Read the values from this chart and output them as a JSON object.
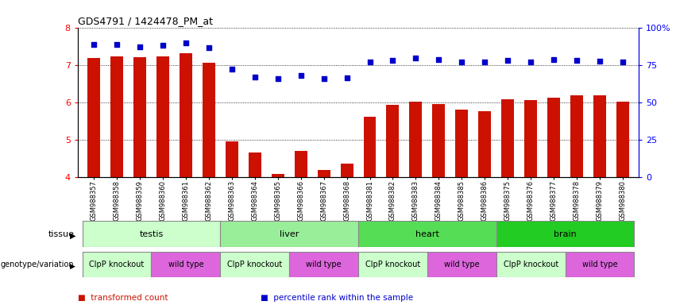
{
  "title": "GDS4791 / 1424478_PM_at",
  "samples": [
    "GSM988357",
    "GSM988358",
    "GSM988359",
    "GSM988360",
    "GSM988361",
    "GSM988362",
    "GSM988363",
    "GSM988364",
    "GSM988365",
    "GSM988366",
    "GSM988367",
    "GSM988368",
    "GSM988381",
    "GSM988382",
    "GSM988383",
    "GSM988384",
    "GSM988385",
    "GSM988386",
    "GSM988375",
    "GSM988376",
    "GSM988377",
    "GSM988378",
    "GSM988379",
    "GSM988380"
  ],
  "bar_values": [
    7.18,
    7.22,
    7.2,
    7.22,
    7.3,
    7.05,
    4.95,
    4.65,
    4.08,
    4.7,
    4.18,
    4.35,
    5.6,
    5.92,
    6.02,
    5.95,
    5.8,
    5.75,
    6.08,
    6.05,
    6.12,
    6.18,
    6.18,
    6.02
  ],
  "dot_values": [
    7.55,
    7.55,
    7.48,
    7.52,
    7.58,
    7.45,
    6.88,
    6.68,
    6.62,
    6.72,
    6.62,
    6.65,
    7.08,
    7.12,
    7.18,
    7.15,
    7.08,
    7.08,
    7.12,
    7.08,
    7.15,
    7.12,
    7.1,
    7.08
  ],
  "ylim": [
    4,
    8
  ],
  "yticks_left": [
    4,
    5,
    6,
    7,
    8
  ],
  "yticks_right_labels": [
    "0",
    "25",
    "50",
    "75",
    "100%"
  ],
  "bar_color": "#cc1100",
  "dot_color": "#0000cc",
  "bar_width": 0.55,
  "tissue_groups": [
    {
      "label": "testis",
      "start": 0,
      "end": 5,
      "color": "#ccffcc"
    },
    {
      "label": "liver",
      "start": 6,
      "end": 11,
      "color": "#99ee99"
    },
    {
      "label": "heart",
      "start": 12,
      "end": 17,
      "color": "#55dd55"
    },
    {
      "label": "brain",
      "start": 18,
      "end": 23,
      "color": "#22cc22"
    }
  ],
  "genotype_groups": [
    {
      "label": "ClpP knockout",
      "start": 0,
      "end": 2,
      "color": "#ccffcc"
    },
    {
      "label": "wild type",
      "start": 3,
      "end": 5,
      "color": "#dd66dd"
    },
    {
      "label": "ClpP knockout",
      "start": 6,
      "end": 8,
      "color": "#ccffcc"
    },
    {
      "label": "wild type",
      "start": 9,
      "end": 11,
      "color": "#dd66dd"
    },
    {
      "label": "ClpP knockout",
      "start": 12,
      "end": 14,
      "color": "#ccffcc"
    },
    {
      "label": "wild type",
      "start": 15,
      "end": 17,
      "color": "#dd66dd"
    },
    {
      "label": "ClpP knockout",
      "start": 18,
      "end": 20,
      "color": "#ccffcc"
    },
    {
      "label": "wild type",
      "start": 21,
      "end": 23,
      "color": "#dd66dd"
    }
  ],
  "legend_items": [
    {
      "label": "transformed count",
      "color": "#cc1100"
    },
    {
      "label": "percentile rank within the sample",
      "color": "#0000cc"
    }
  ],
  "bg_color": "#e8e8e8"
}
